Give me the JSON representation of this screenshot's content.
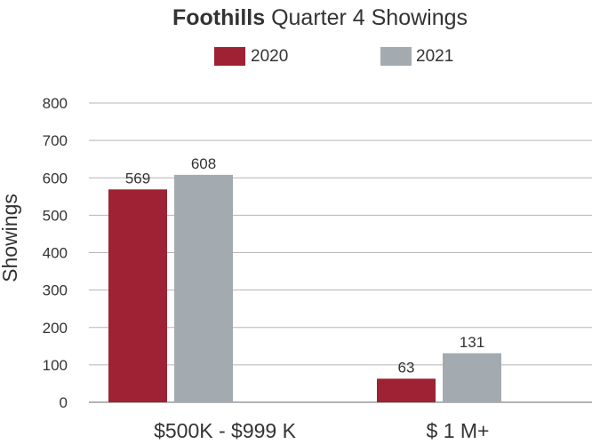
{
  "chart_data": {
    "type": "bar",
    "title_bold": "Foothills",
    "title_rest": " Quarter 4 Showings",
    "ylabel": "Showings",
    "xlabel": "",
    "categories": [
      "$500K - $999 K",
      "$ 1 M+"
    ],
    "series": [
      {
        "name": "2020",
        "values": [
          569,
          63
        ],
        "color": "#9e2233"
      },
      {
        "name": "2021",
        "values": [
          608,
          131
        ],
        "color": "#a3aab0"
      }
    ],
    "ylim": [
      0,
      800
    ],
    "yticks": [
      0,
      100,
      200,
      300,
      400,
      500,
      600,
      700,
      800
    ],
    "grid": true,
    "legend_position": "top-center"
  }
}
